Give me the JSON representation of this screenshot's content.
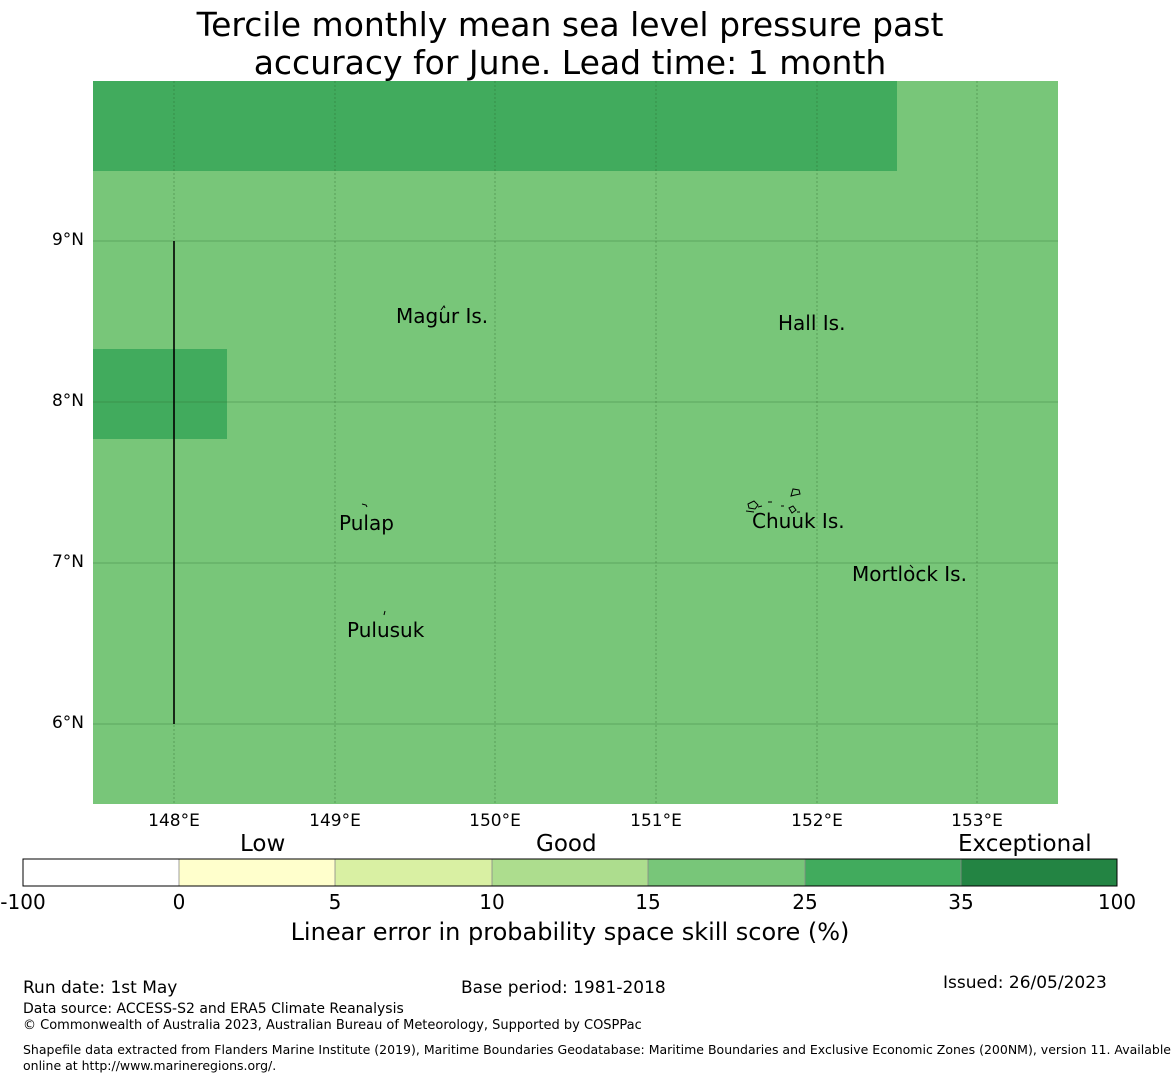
{
  "title_lines": [
    "Tercile monthly mean sea level pressure past",
    "accuracy for June. Lead time: 1 month"
  ],
  "map": {
    "lat_labels": [
      "9°N",
      "8°N",
      "7°N",
      "6°N"
    ],
    "lon_labels": [
      "148°E",
      "149°E",
      "150°E",
      "151°E",
      "152°E",
      "153°E"
    ],
    "islands": {
      "magur": "Magur Is.",
      "hall": "Hall Is.",
      "pulap": "Pulap",
      "chuuk": "Chuuk Is.",
      "mortlock": "Mortlock Is.",
      "pulusuk": "Pulusuk"
    },
    "colors": {
      "good": "#78c679",
      "better": "#41ab5d",
      "grid": "#2f6a2f"
    },
    "skill_regions": [
      {
        "description": "northern band",
        "category": "25-35"
      },
      {
        "description": "western box near 8°N",
        "category": "25-35"
      },
      {
        "description": "background",
        "category": "15-25"
      }
    ]
  },
  "colorbar": {
    "category_labels": {
      "low": "Low",
      "good": "Good",
      "exceptional": "Exceptional"
    },
    "ticks": [
      "-100",
      "0",
      "5",
      "10",
      "15",
      "25",
      "35",
      "100"
    ],
    "bin_colors": [
      "#ffffff",
      "#ffffcc",
      "#d9f0a3",
      "#addd8e",
      "#78c679",
      "#41ab5d",
      "#238443"
    ],
    "title": "Linear error in probability space skill score (%)"
  },
  "footer": {
    "run_date": "Run date: 1st May",
    "base_period": "Base period: 1981-2018",
    "issued": "Issued: 26/05/2023",
    "data_source": "Data source: ACCESS-S2 and ERA5 Climate Reanalysis",
    "copyright": "© Commonwealth of Australia 2023, Australian Bureau of Meteorology, Supported by COSPPac",
    "shapefile_line1": "Shapefile data extracted from Flanders Marine Institute (2019), Maritime Boundaries Geodatabase: Maritime Boundaries and Exclusive Economic Zones (200NM), version 11. Available",
    "shapefile_line2": "online at http://www.marineregions.org/."
  }
}
